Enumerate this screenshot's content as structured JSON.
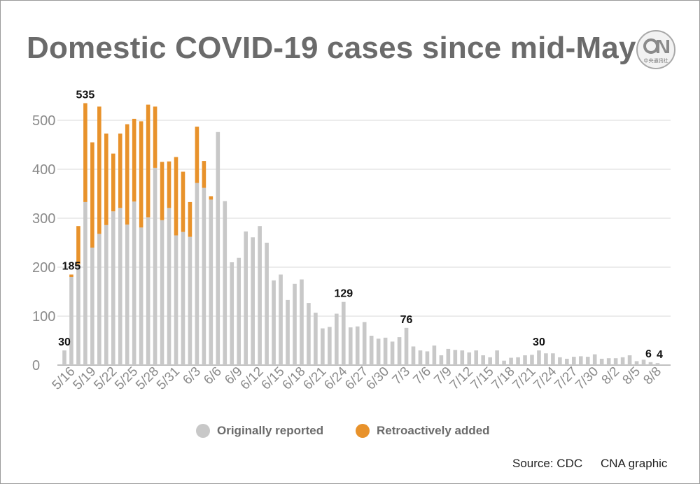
{
  "title": "Domestic COVID-19 cases since mid-May",
  "logo": {
    "icon": "cna-logo-icon",
    "text": "中央通訊社"
  },
  "legend": [
    {
      "label": "Originally reported",
      "color": "#c8c8c8"
    },
    {
      "label": "Retroactively added",
      "color": "#e8922b"
    }
  ],
  "footer": {
    "source": "Source: CDC",
    "credit": "CNA graphic"
  },
  "chart_data": {
    "type": "bar",
    "stacked": true,
    "ylim": [
      0,
      550
    ],
    "yticks": [
      0,
      100,
      200,
      300,
      400,
      500
    ],
    "grid": true,
    "legend_position": "bottom",
    "xtick_labels": [
      "5/16",
      "5/19",
      "5/22",
      "5/25",
      "5/28",
      "5/31",
      "6/3",
      "6/6",
      "6/9",
      "6/12",
      "6/15",
      "6/18",
      "6/21",
      "6/24",
      "6/27",
      "6/30",
      "7/3",
      "7/6",
      "7/9",
      "7/12",
      "7/15",
      "7/18",
      "7/21",
      "7/24",
      "7/27",
      "7/30",
      "8/2",
      "8/5",
      "8/8"
    ],
    "categories": [
      "5/15",
      "5/16",
      "5/17",
      "5/18",
      "5/19",
      "5/20",
      "5/21",
      "5/22",
      "5/23",
      "5/24",
      "5/25",
      "5/26",
      "5/27",
      "5/28",
      "5/29",
      "5/30",
      "5/31",
      "6/1",
      "6/2",
      "6/3",
      "6/4",
      "6/5",
      "6/6",
      "6/7",
      "6/8",
      "6/9",
      "6/10",
      "6/11",
      "6/12",
      "6/13",
      "6/14",
      "6/15",
      "6/16",
      "6/17",
      "6/18",
      "6/19",
      "6/20",
      "6/21",
      "6/22",
      "6/23",
      "6/24",
      "6/25",
      "6/26",
      "6/27",
      "6/28",
      "6/29",
      "6/30",
      "7/1",
      "7/2",
      "7/3",
      "7/4",
      "7/5",
      "7/6",
      "7/7",
      "7/8",
      "7/9",
      "7/10",
      "7/11",
      "7/12",
      "7/13",
      "7/14",
      "7/15",
      "7/16",
      "7/17",
      "7/18",
      "7/19",
      "7/20",
      "7/21",
      "7/22",
      "7/23",
      "7/24",
      "7/25",
      "7/26",
      "7/27",
      "7/28",
      "7/29",
      "7/30",
      "7/31",
      "8/1",
      "8/2",
      "8/3",
      "8/4",
      "8/5",
      "8/6",
      "8/7",
      "8/8"
    ],
    "series": [
      {
        "name": "Originally reported",
        "color": "#c8c8c8",
        "values": [
          30,
          180,
          206,
          333,
          240,
          268,
          286,
          314,
          321,
          287,
          334,
          281,
          302,
          403,
          296,
          321,
          265,
          272,
          262,
          372,
          362,
          338,
          476,
          335,
          210,
          219,
          273,
          261,
          284,
          250,
          173,
          185,
          133,
          166,
          175,
          127,
          107,
          75,
          78,
          105,
          129,
          77,
          79,
          88,
          60,
          54,
          56,
          48,
          57,
          76,
          38,
          30,
          28,
          40,
          20,
          33,
          31,
          30,
          26,
          30,
          20,
          16,
          30,
          9,
          15,
          16,
          20,
          21,
          30,
          24,
          24,
          16,
          13,
          17,
          18,
          17,
          22,
          13,
          14,
          14,
          16,
          20,
          8,
          11,
          6,
          4
        ]
      },
      {
        "name": "Retroactively added",
        "color": "#e8922b",
        "values": [
          0,
          5,
          78,
          202,
          215,
          260,
          187,
          118,
          152,
          205,
          169,
          217,
          230,
          125,
          119,
          95,
          160,
          123,
          71,
          115,
          55,
          7,
          0,
          0,
          0,
          0,
          0,
          0,
          0,
          0,
          0,
          0,
          0,
          0,
          0,
          0,
          0,
          0,
          0,
          0,
          0,
          0,
          0,
          0,
          0,
          0,
          0,
          0,
          0,
          0,
          0,
          0,
          0,
          0,
          0,
          0,
          0,
          0,
          0,
          0,
          0,
          0,
          0,
          0,
          0,
          0,
          0,
          0,
          0,
          0,
          0,
          0,
          0,
          0,
          0,
          0,
          0,
          0,
          0,
          0,
          0,
          0,
          0,
          0,
          0,
          0
        ]
      }
    ],
    "annotations": [
      {
        "date": "5/15",
        "label": "30"
      },
      {
        "date": "5/16",
        "label": "185"
      },
      {
        "date": "5/18",
        "label": "535"
      },
      {
        "date": "6/24",
        "label": "129"
      },
      {
        "date": "7/3",
        "label": "76"
      },
      {
        "date": "7/22",
        "label": "30"
      },
      {
        "date": "8/7",
        "label": "6"
      },
      {
        "date": "8/8",
        "label": "4"
      }
    ]
  }
}
